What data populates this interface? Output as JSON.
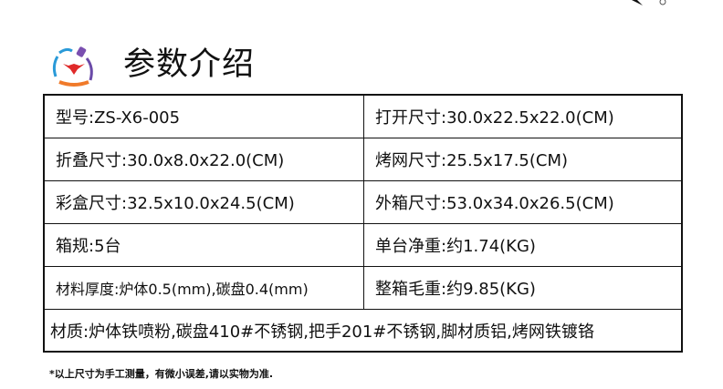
{
  "header": {
    "title": "参数介绍",
    "logo_icon": "chef-lion-logo-icon"
  },
  "specs": [
    [
      "型号:ZS-X6-005",
      "打开尺寸:30.0x22.5x22.0(CM)"
    ],
    [
      "折叠尺寸:30.0x8.0x22.0(CM)",
      "烤网尺寸:25.5x17.5(CM)"
    ],
    [
      "彩盒尺寸:32.5x10.0x24.5(CM)",
      "外箱尺寸:53.0x34.0x26.5(CM)"
    ],
    [
      "箱规:5台",
      "单台净重:约1.74(KG)"
    ],
    [
      "材料厚度:炉体0.5(mm),碳盘0.4(mm)",
      "整箱毛重:约9.85(KG)"
    ]
  ],
  "material": "材质:炉体铁喷粉,碳盘410#不锈钢,把手201#不锈钢,脚材质铝,烤网铁镀铬",
  "note": "*以上尺寸为手工测量，有微小误差,请以实物为准."
}
